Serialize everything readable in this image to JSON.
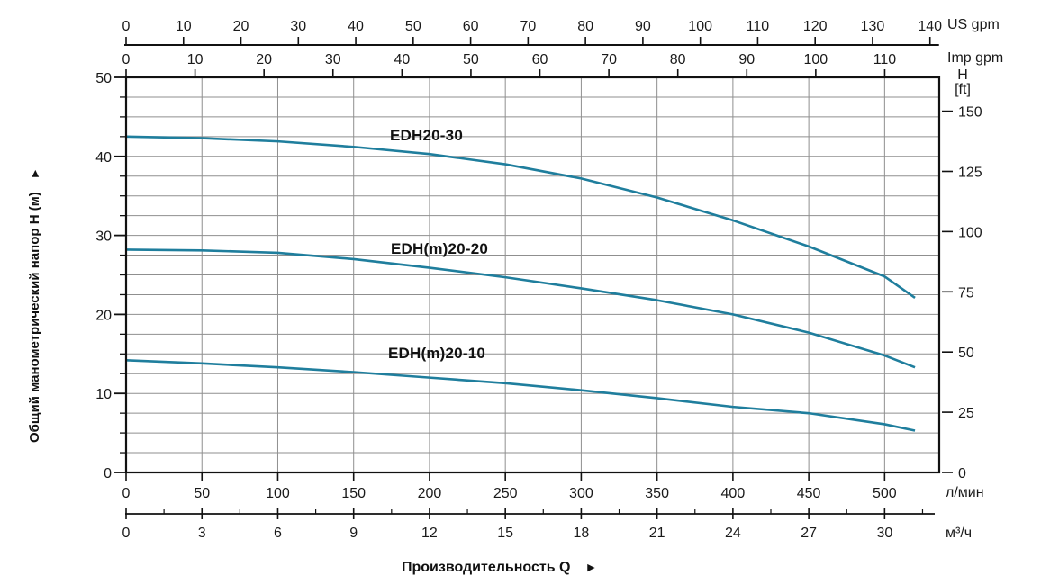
{
  "axes": {
    "top_us": {
      "unit": "US gpm",
      "ticks": [
        0,
        10,
        20,
        30,
        40,
        50,
        60,
        70,
        80,
        90,
        100,
        110,
        120,
        130,
        140
      ],
      "lmin_per_unit": 3.785
    },
    "top_imp": {
      "unit": "Imp gpm",
      "ticks": [
        0,
        10,
        20,
        30,
        40,
        50,
        60,
        70,
        80,
        90,
        100,
        110
      ],
      "lmin_per_unit": 4.546
    },
    "bottom_lmin": {
      "unit": "л/мин",
      "ticks": [
        0,
        50,
        100,
        150,
        200,
        250,
        300,
        350,
        400,
        450,
        500
      ]
    },
    "bottom_m3h": {
      "unit": "м³/ч",
      "ticks": [
        0,
        3,
        6,
        9,
        12,
        15,
        18,
        21,
        24,
        27,
        30
      ],
      "minor_step": 1.5,
      "minor_max": 31.5,
      "lmin_per_unit": 16.6667
    },
    "left_m": {
      "title": "Общий манометрический напор H (м)",
      "arrow": "►",
      "ticks": [
        0,
        10,
        20,
        30,
        40,
        50
      ],
      "minor_step": 2.5
    },
    "right_ft": {
      "title_line1": "H",
      "title_line2": "[ft]",
      "ticks": [
        0,
        25,
        50,
        75,
        100,
        125,
        150
      ],
      "m_per_unit": 0.3048
    }
  },
  "xlabel": "Производительность Q",
  "xlabel_arrow": "►",
  "chart_data": {
    "type": "line",
    "x_unit": "л/мин",
    "y_unit": "м",
    "xlim": [
      0,
      536
    ],
    "ylim": [
      0,
      50
    ],
    "grid": {
      "x_step_lmin": 50,
      "y_step_m": 2.5
    },
    "legend_position": "inline-labels",
    "series": [
      {
        "name": "EDH20-30",
        "points": [
          [
            0,
            42.5
          ],
          [
            50,
            42.3
          ],
          [
            100,
            41.9
          ],
          [
            150,
            41.2
          ],
          [
            200,
            40.3
          ],
          [
            250,
            39.0
          ],
          [
            300,
            37.2
          ],
          [
            350,
            34.8
          ],
          [
            400,
            31.9
          ],
          [
            450,
            28.6
          ],
          [
            500,
            24.8
          ],
          [
            520,
            22.1
          ]
        ]
      },
      {
        "name": "EDH(m)20-20",
        "points": [
          [
            0,
            28.2
          ],
          [
            50,
            28.1
          ],
          [
            100,
            27.8
          ],
          [
            150,
            27.0
          ],
          [
            200,
            25.9
          ],
          [
            250,
            24.7
          ],
          [
            300,
            23.3
          ],
          [
            350,
            21.8
          ],
          [
            400,
            20.0
          ],
          [
            450,
            17.7
          ],
          [
            500,
            14.8
          ],
          [
            520,
            13.3
          ]
        ]
      },
      {
        "name": "EDH(m)20-10",
        "points": [
          [
            0,
            14.2
          ],
          [
            50,
            13.8
          ],
          [
            100,
            13.3
          ],
          [
            150,
            12.7
          ],
          [
            200,
            12.0
          ],
          [
            250,
            11.3
          ],
          [
            300,
            10.4
          ],
          [
            350,
            9.4
          ],
          [
            400,
            8.3
          ],
          [
            450,
            7.5
          ],
          [
            500,
            6.1
          ],
          [
            520,
            5.3
          ]
        ]
      }
    ],
    "colors": {
      "curve": "#1f7e9d",
      "grid": "#8f8f8f",
      "axis": "#1a1a1a"
    }
  }
}
